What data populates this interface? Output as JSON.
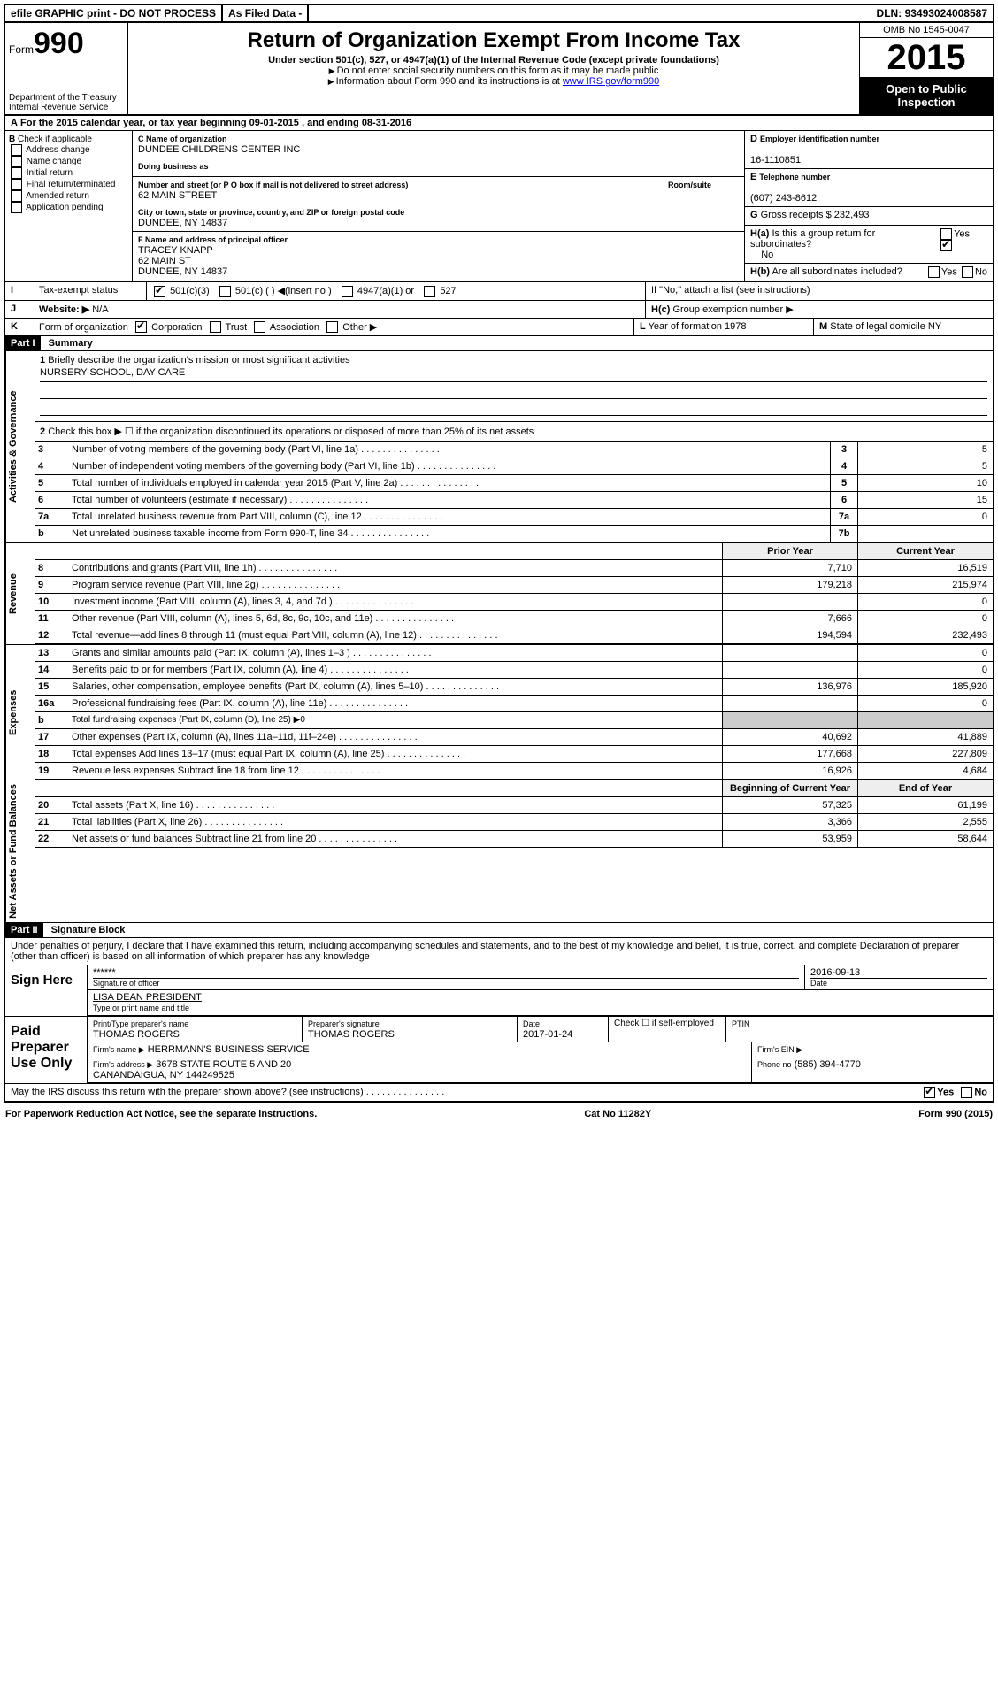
{
  "topbar": {
    "efile": "efile GRAPHIC print - DO NOT PROCESS",
    "asfiled": "As Filed Data -",
    "dln_label": "DLN:",
    "dln": "93493024008587"
  },
  "header": {
    "form_label": "Form",
    "form_num": "990",
    "dept": "Department of the Treasury\nInternal Revenue Service",
    "title": "Return of Organization Exempt From Income Tax",
    "subtitle": "Under section 501(c), 527, or 4947(a)(1) of the Internal Revenue Code (except private foundations)",
    "note1": "Do not enter social security numbers on this form as it may be made public",
    "note2_a": "Information about Form 990 and its instructions is at ",
    "note2_link": "www IRS gov/form990",
    "omb": "OMB No 1545-0047",
    "year": "2015",
    "otp": "Open to Public Inspection"
  },
  "rowA": {
    "text_a": "For the 2015 calendar year, or tax year beginning ",
    "begin": "09-01-2015",
    "text_b": " , and ending ",
    "end": "08-31-2016"
  },
  "colB": {
    "label": "Check if applicable",
    "items": [
      "Address change",
      "Name change",
      "Initial return",
      "Final return/terminated",
      "Amended return",
      "Application pending"
    ]
  },
  "colC": {
    "name_lbl": "Name of organization",
    "name": "DUNDEE CHILDRENS CENTER INC",
    "dba_lbl": "Doing business as",
    "dba": "",
    "addr_lbl": "Number and street (or P O box if mail is not delivered to street address)",
    "room_lbl": "Room/suite",
    "addr": "62 MAIN STREET",
    "city_lbl": "City or town, state or province, country, and ZIP or foreign postal code",
    "city": "DUNDEE, NY 14837",
    "officer_lbl": "Name and address of principal officer",
    "officer": "TRACEY KNAPP\n62 MAIN ST\nDUNDEE, NY 14837"
  },
  "colD": {
    "ein_lbl": "Employer identification number",
    "ein": "16-1110851",
    "tel_lbl": "Telephone number",
    "tel": "(607) 243-8612",
    "gross_lbl": "Gross receipts $",
    "gross": "232,493"
  },
  "rowH": {
    "ha": "Is this a group return for subordinates?",
    "ha_ans": "No",
    "hb": "Are all subordinates included?",
    "hb_note": "If \"No,\" attach a list (see instructions)",
    "hc": "Group exemption number ▶"
  },
  "rowI": {
    "label": "Tax-exempt status",
    "opts": [
      "501(c)(3)",
      "501(c) ( ) ◀(insert no )",
      "4947(a)(1) or",
      "527"
    ]
  },
  "rowJ": {
    "label": "Website: ▶",
    "val": "N/A"
  },
  "rowK": {
    "label": "Form of organization",
    "opts": [
      "Corporation",
      "Trust",
      "Association",
      "Other ▶"
    ]
  },
  "rowL": {
    "yof_lbl": "Year of formation",
    "yof": "1978",
    "dom_lbl": "State of legal domicile",
    "dom": "NY"
  },
  "partI": {
    "hdr": "Part I",
    "title": "Summary",
    "q1": "Briefly describe the organization's mission or most significant activities",
    "mission": "NURSERY SCHOOL, DAY CARE",
    "q2": "Check this box ▶ ☐ if the organization discontinued its operations or disposed of more than 25% of its net assets",
    "vtab_gov": "Activities & Governance",
    "vtab_rev": "Revenue",
    "vtab_exp": "Expenses",
    "vtab_net": "Net Assets or Fund Balances",
    "lines_gov": [
      {
        "n": "3",
        "d": "Number of voting members of the governing body (Part VI, line 1a)",
        "box": "3",
        "v": "5"
      },
      {
        "n": "4",
        "d": "Number of independent voting members of the governing body (Part VI, line 1b)",
        "box": "4",
        "v": "5"
      },
      {
        "n": "5",
        "d": "Total number of individuals employed in calendar year 2015 (Part V, line 2a)",
        "box": "5",
        "v": "10"
      },
      {
        "n": "6",
        "d": "Total number of volunteers (estimate if necessary)",
        "box": "6",
        "v": "15"
      },
      {
        "n": "7a",
        "d": "Total unrelated business revenue from Part VIII, column (C), line 12",
        "box": "7a",
        "v": "0"
      },
      {
        "n": "b",
        "d": "Net unrelated business taxable income from Form 990-T, line 34",
        "box": "7b",
        "v": ""
      }
    ],
    "col_prior": "Prior Year",
    "col_curr": "Current Year",
    "lines_rev": [
      {
        "n": "8",
        "d": "Contributions and grants (Part VIII, line 1h)",
        "p": "7,710",
        "c": "16,519"
      },
      {
        "n": "9",
        "d": "Program service revenue (Part VIII, line 2g)",
        "p": "179,218",
        "c": "215,974"
      },
      {
        "n": "10",
        "d": "Investment income (Part VIII, column (A), lines 3, 4, and 7d )",
        "p": "",
        "c": "0"
      },
      {
        "n": "11",
        "d": "Other revenue (Part VIII, column (A), lines 5, 6d, 8c, 9c, 10c, and 11e)",
        "p": "7,666",
        "c": "0"
      },
      {
        "n": "12",
        "d": "Total revenue—add lines 8 through 11 (must equal Part VIII, column (A), line 12)",
        "p": "194,594",
        "c": "232,493"
      }
    ],
    "lines_exp": [
      {
        "n": "13",
        "d": "Grants and similar amounts paid (Part IX, column (A), lines 1–3 )",
        "p": "",
        "c": "0"
      },
      {
        "n": "14",
        "d": "Benefits paid to or for members (Part IX, column (A), line 4)",
        "p": "",
        "c": "0"
      },
      {
        "n": "15",
        "d": "Salaries, other compensation, employee benefits (Part IX, column (A), lines 5–10)",
        "p": "136,976",
        "c": "185,920"
      },
      {
        "n": "16a",
        "d": "Professional fundraising fees (Part IX, column (A), line 11e)",
        "p": "",
        "c": "0"
      },
      {
        "n": "b",
        "d": "Total fundraising expenses (Part IX, column (D), line 25) ▶0",
        "p": "",
        "c": "",
        "nobord": true
      },
      {
        "n": "17",
        "d": "Other expenses (Part IX, column (A), lines 11a–11d, 11f–24e)",
        "p": "40,692",
        "c": "41,889"
      },
      {
        "n": "18",
        "d": "Total expenses Add lines 13–17 (must equal Part IX, column (A), line 25)",
        "p": "177,668",
        "c": "227,809"
      },
      {
        "n": "19",
        "d": "Revenue less expenses Subtract line 18 from line 12",
        "p": "16,926",
        "c": "4,684"
      }
    ],
    "col_begin": "Beginning of Current Year",
    "col_end": "End of Year",
    "lines_net": [
      {
        "n": "20",
        "d": "Total assets (Part X, line 16)",
        "p": "57,325",
        "c": "61,199"
      },
      {
        "n": "21",
        "d": "Total liabilities (Part X, line 26)",
        "p": "3,366",
        "c": "2,555"
      },
      {
        "n": "22",
        "d": "Net assets or fund balances Subtract line 21 from line 20",
        "p": "53,959",
        "c": "58,644"
      }
    ]
  },
  "partII": {
    "hdr": "Part II",
    "title": "Signature Block",
    "decl": "Under penalties of perjury, I declare that I have examined this return, including accompanying schedules and statements, and to the best of my knowledge and belief, it is true, correct, and complete Declaration of preparer (other than officer) is based on all information of which preparer has any knowledge"
  },
  "sign": {
    "here": "Sign Here",
    "sig_redact": "******",
    "sig_lbl": "Signature of officer",
    "date": "2016-09-13",
    "date_lbl": "Date",
    "name": "LISA DEAN PRESIDENT",
    "name_lbl": "Type or print name and title"
  },
  "paid": {
    "left": "Paid Preparer Use Only",
    "pname_lbl": "Print/Type preparer's name",
    "pname": "THOMAS ROGERS",
    "psig_lbl": "Preparer's signature",
    "psig": "THOMAS ROGERS",
    "pdate_lbl": "Date",
    "pdate": "2017-01-24",
    "selfemp": "Check ☐ if self-employed",
    "ptin_lbl": "PTIN",
    "firm_lbl": "Firm's name ▶",
    "firm": "HERRMANN'S BUSINESS SERVICE",
    "fein_lbl": "Firm's EIN ▶",
    "faddr_lbl": "Firm's address ▶",
    "faddr": "3678 STATE ROUTE 5 AND 20\nCANANDAIGUA, NY 144249525",
    "fphone_lbl": "Phone no",
    "fphone": "(585) 394-4770"
  },
  "discuss": {
    "q": "May the IRS discuss this return with the preparer shown above? (see instructions)",
    "yes": "Yes",
    "no": "No"
  },
  "footer": {
    "left": "For Paperwork Reduction Act Notice, see the separate instructions.",
    "mid": "Cat No 11282Y",
    "right": "Form 990 (2015)"
  }
}
